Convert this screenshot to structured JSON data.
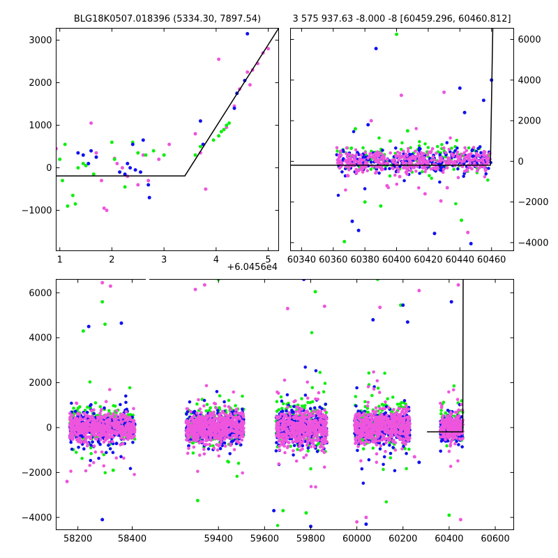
{
  "chart_data": [
    {
      "type": "scatter",
      "panel": "top-left zoom",
      "title": "BLG18K0507.018396 (5334.30, 7897.54)",
      "x_offset_label": "+6.0456e4",
      "xlim": [
        0.93,
        5.2
      ],
      "ylim": [
        -1950,
        3280
      ],
      "xticks": [
        1,
        2,
        3,
        4,
        5
      ],
      "yticks": [
        -1000,
        0,
        1000,
        2000,
        3000
      ],
      "model_line": [
        [
          0.93,
          -190
        ],
        [
          3.4,
          -190
        ],
        [
          5.2,
          3280
        ]
      ],
      "colors": {
        "magenta": "#ee55dd",
        "green": "#11ee11",
        "blue": "#1111ee",
        "model": "#000000"
      },
      "series": [
        {
          "color_name": "magenta",
          "points": [
            [
              0.93,
              450
            ],
            [
              1.6,
              1050
            ],
            [
              1.7,
              350
            ],
            [
              1.8,
              -300
            ],
            [
              1.85,
              -950
            ],
            [
              1.9,
              -1000
            ],
            [
              2.05,
              220
            ],
            [
              2.1,
              100
            ],
            [
              2.2,
              0
            ],
            [
              2.3,
              -200
            ],
            [
              2.5,
              -400
            ],
            [
              2.6,
              300
            ],
            [
              2.7,
              -300
            ],
            [
              2.9,
              200
            ],
            [
              3.1,
              550
            ],
            [
              3.6,
              800
            ],
            [
              3.7,
              350
            ],
            [
              3.8,
              -500
            ],
            [
              4.2,
              950
            ],
            [
              4.35,
              1450
            ],
            [
              4.45,
              1850
            ],
            [
              4.6,
              2250
            ],
            [
              4.65,
              1950
            ],
            [
              4.7,
              2300
            ],
            [
              4.8,
              2450
            ],
            [
              4.9,
              2700
            ],
            [
              5.0,
              2800
            ],
            [
              4.05,
              2550
            ]
          ]
        },
        {
          "color_name": "green",
          "points": [
            [
              1.0,
              200
            ],
            [
              1.05,
              -300
            ],
            [
              1.1,
              550
            ],
            [
              1.15,
              -900
            ],
            [
              1.25,
              -650
            ],
            [
              1.3,
              -850
            ],
            [
              1.35,
              0
            ],
            [
              1.45,
              100
            ],
            [
              1.5,
              50
            ],
            [
              1.65,
              -150
            ],
            [
              2.0,
              600
            ],
            [
              2.05,
              200
            ],
            [
              2.25,
              -450
            ],
            [
              2.4,
              600
            ],
            [
              2.5,
              350
            ],
            [
              2.65,
              300
            ],
            [
              2.8,
              400
            ],
            [
              3.0,
              300
            ],
            [
              3.6,
              300
            ],
            [
              3.7,
              500
            ],
            [
              3.95,
              650
            ],
            [
              4.05,
              750
            ],
            [
              4.1,
              850
            ],
            [
              4.15,
              900
            ],
            [
              4.2,
              1000
            ],
            [
              4.25,
              1050
            ]
          ]
        },
        {
          "color_name": "blue",
          "points": [
            [
              1.35,
              350
            ],
            [
              1.45,
              300
            ],
            [
              1.55,
              100
            ],
            [
              1.6,
              400
            ],
            [
              1.7,
              250
            ],
            [
              2.15,
              -100
            ],
            [
              2.25,
              -150
            ],
            [
              2.3,
              100
            ],
            [
              2.35,
              0
            ],
            [
              2.4,
              550
            ],
            [
              2.45,
              -50
            ],
            [
              2.55,
              -100
            ],
            [
              2.6,
              650
            ],
            [
              2.7,
              -400
            ],
            [
              2.72,
              -700
            ],
            [
              3.7,
              1100
            ],
            [
              3.75,
              550
            ],
            [
              4.35,
              1400
            ],
            [
              4.55,
              2050
            ],
            [
              4.6,
              3150
            ],
            [
              4.4,
              1750
            ]
          ]
        }
      ]
    },
    {
      "type": "scatter",
      "panel": "top-right",
      "title": "3 575 937.63 -8.000 -8 [60459.296, 60460.812]",
      "xlim": [
        60333,
        60474
      ],
      "ylim": [
        -4400,
        6550
      ],
      "xticks": [
        60340,
        60360,
        60380,
        60400,
        60420,
        60440,
        60460
      ],
      "yticks": [
        -4000,
        -2000,
        0,
        2000,
        4000,
        6000
      ],
      "y_axis_side": "right",
      "model_line": [
        [
          60333,
          -190
        ],
        [
          60459.3,
          -190
        ],
        [
          60460.8,
          6550
        ]
      ],
      "spread_band": {
        "x_range": [
          60362,
          60460
        ],
        "sigma": 280
      },
      "colors": {
        "magenta": "#ee55dd",
        "green": "#11ee11",
        "blue": "#1111ee",
        "model": "#000000"
      },
      "series": [
        {
          "color_name": "magenta",
          "points": [
            [
              60384,
              2000
            ],
            [
              60430,
              3400
            ],
            [
              60403,
              3250
            ],
            [
              60445,
              -3500
            ],
            [
              60428,
              -1950
            ],
            [
              60369,
              -700
            ],
            [
              60418,
              -1600
            ],
            [
              60394,
              -1200
            ],
            [
              60402,
              -750
            ],
            [
              60432,
              -1300
            ]
          ]
        },
        {
          "color_name": "green",
          "points": [
            [
              60367,
              -3950
            ],
            [
              60400,
              6250
            ],
            [
              60380,
              -2000
            ],
            [
              60390,
              -2200
            ],
            [
              60441,
              -2900
            ],
            [
              60374,
              1600
            ],
            [
              60407,
              1500
            ],
            [
              60396,
              1000
            ]
          ]
        },
        {
          "color_name": "blue",
          "points": [
            [
              60387,
              5550
            ],
            [
              60376,
              -3400
            ],
            [
              60372,
              -2950
            ],
            [
              60424,
              -3550
            ],
            [
              60447,
              -4050
            ],
            [
              60440,
              3600
            ],
            [
              60443,
              2400
            ],
            [
              60455,
              3000
            ],
            [
              60460,
              4000
            ],
            [
              60382,
              1800
            ]
          ]
        }
      ]
    },
    {
      "type": "scatter",
      "panel": "bottom full light curve",
      "xlim": [
        58120,
        60680
      ],
      "ylim": [
        -4550,
        6600
      ],
      "xticks": [
        58200,
        58400,
        59400,
        59600,
        59800,
        60000,
        60200,
        60400,
        60600
      ],
      "yticks": [
        -4000,
        -2000,
        0,
        2000,
        4000,
        6000
      ],
      "x_axis_break": true,
      "model_line": [
        [
          60304,
          -190
        ],
        [
          60459.3,
          -190
        ],
        [
          60460.8,
          6600
        ]
      ],
      "seasons": [
        {
          "x_range": [
            58170,
            58410
          ],
          "sigma": 300
        },
        {
          "x_range": [
            59260,
            59510
          ],
          "sigma": 320
        },
        {
          "x_range": [
            59650,
            59870
          ],
          "sigma": 380
        },
        {
          "x_range": [
            59990,
            60230
          ],
          "sigma": 340
        },
        {
          "x_range": [
            60362,
            60460
          ],
          "sigma": 300
        }
      ],
      "colors": {
        "magenta": "#ee55dd",
        "green": "#11ee11",
        "blue": "#1111ee",
        "model": "#000000"
      },
      "series": [
        {
          "color_name": "magenta",
          "points": [
            [
              58290,
              6450
            ],
            [
              58320,
              6300
            ],
            [
              59340,
              6350
            ],
            [
              59300,
              6150
            ],
            [
              59700,
              5300
            ],
            [
              59860,
              5400
            ],
            [
              60250,
              -1300
            ],
            [
              60270,
              6100
            ],
            [
              60100,
              5350
            ],
            [
              60440,
              6350
            ],
            [
              60450,
              -4100
            ],
            [
              60040,
              -4000
            ],
            [
              60000,
              -4200
            ],
            [
              58160,
              -2400
            ]
          ]
        },
        {
          "color_name": "green",
          "points": [
            [
              59400,
              6600
            ],
            [
              59820,
              6050
            ],
            [
              60090,
              6600
            ],
            [
              60190,
              5450
            ],
            [
              58290,
              5600
            ],
            [
              58300,
              4600
            ],
            [
              58220,
              4300
            ],
            [
              59780,
              -3800
            ],
            [
              59680,
              -3700
            ],
            [
              60400,
              -3900
            ],
            [
              59310,
              -3250
            ],
            [
              58330,
              -1900
            ]
          ]
        },
        {
          "color_name": "blue",
          "points": [
            [
              59770,
              6600
            ],
            [
              60220,
              4700
            ],
            [
              60200,
              5450
            ],
            [
              60070,
              4800
            ],
            [
              58240,
              4500
            ],
            [
              60410,
              5600
            ],
            [
              58360,
              4650
            ],
            [
              59800,
              -4400
            ],
            [
              58290,
              -4100
            ],
            [
              60040,
              -4300
            ],
            [
              60270,
              -1550
            ],
            [
              59640,
              -3700
            ]
          ]
        }
      ]
    }
  ]
}
